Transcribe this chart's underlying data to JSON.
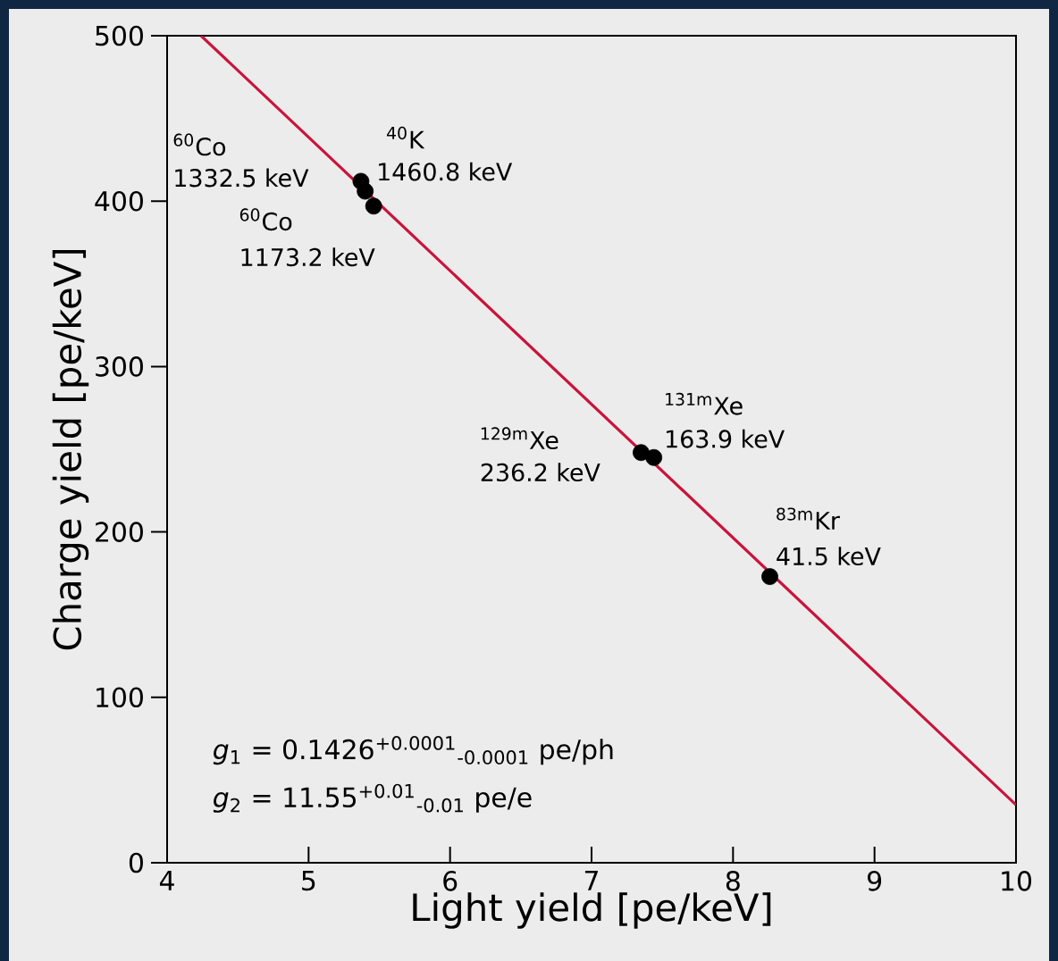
{
  "chart_data": {
    "type": "scatter",
    "xlabel": "Light yield [pe/keV]",
    "ylabel": "Charge yield [pe/keV]",
    "xlim": [
      4,
      10
    ],
    "ylim": [
      0,
      500
    ],
    "xticks": [
      4,
      5,
      6,
      7,
      8,
      9,
      10
    ],
    "yticks": [
      0,
      100,
      200,
      300,
      400,
      500
    ],
    "grid": false,
    "series": [
      {
        "type": "line",
        "color": "#c8143c",
        "x": [
          4.24,
          10
        ],
        "values": [
          500,
          35
        ],
        "marker": "none",
        "line_style": "solid"
      },
      {
        "type": "scatter",
        "color": "#000000",
        "marker": "circle",
        "x": [
          5.37,
          5.4,
          5.46,
          7.35,
          7.44,
          8.26
        ],
        "values": [
          412,
          406,
          397,
          248,
          245,
          173
        ]
      }
    ],
    "annotations": [
      "$^{60}$Co",
      {
        "text": "1332.5 keV",
        "x": 5.37,
        "y": 412
      },
      "$^{40}$K",
      {
        "text": "1460.8 keV",
        "x": 5.4,
        "y": 406
      },
      "$^{60}$Co",
      {
        "text": "1173.2 keV",
        "x": 5.46,
        "y": 397
      },
      "$^{129m}$Xe",
      {
        "text": "236.2 keV",
        "x": 7.35,
        "y": 248
      },
      "$^{131m}$Xe",
      {
        "text": "163.9 keV",
        "x": 7.44,
        "y": 245
      },
      "$^{83m}$Kr",
      {
        "text": "41.5 keV",
        "x": 8.26,
        "y": 173
      },
      "*g*$_{1}$ = 0.1426$^{+0.0001}$$_{-0.0001}$ pe/ph",
      "*g*$_{2}$ = 11.55$^{+0.01}$$_{-0.01}$ pe/e"
    ]
  }
}
